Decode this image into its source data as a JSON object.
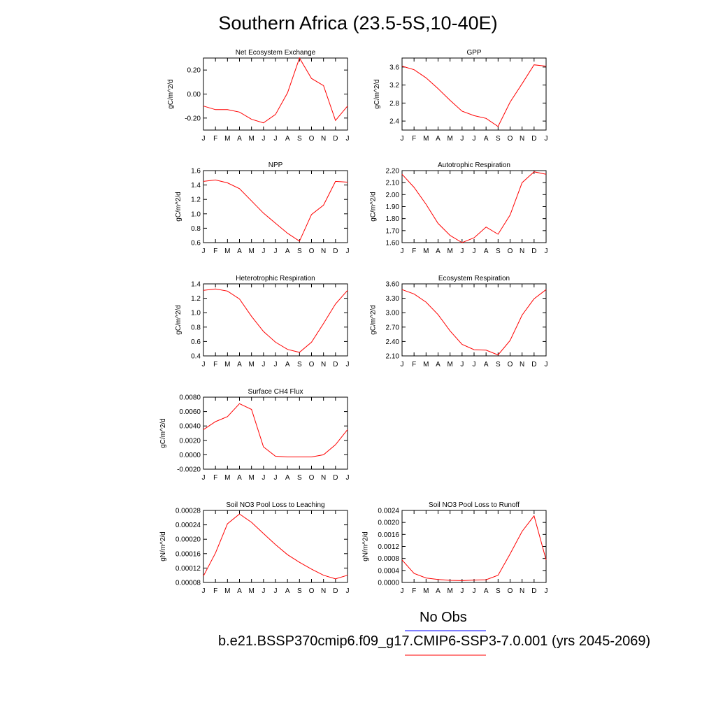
{
  "title": "Southern Africa (23.5-5S,10-40E)",
  "legend": {
    "obs_label": "No Obs",
    "obs_color": "#0000ff",
    "run_label": "b.e21.BSSP370cmip6.f09_g17.CMIP6-SSP3-7.0.001 (yrs 2045-2069)",
    "run_color": "#ff0000"
  },
  "chart_data": [
    {
      "type": "line",
      "title": "Net Ecosystem Exchange",
      "ylabel": "gC/m^2/d",
      "ylim": [
        -0.3,
        0.3
      ],
      "yticks": [
        -0.2,
        0.0,
        0.2
      ],
      "ytick_labels": [
        "-0.20",
        "0.00",
        "0.20"
      ],
      "x": [
        "J",
        "F",
        "M",
        "A",
        "M",
        "J",
        "J",
        "A",
        "S",
        "O",
        "N",
        "D",
        "J"
      ],
      "series": [
        {
          "values": [
            -0.1,
            -0.13,
            -0.13,
            -0.15,
            -0.21,
            -0.24,
            -0.17,
            0.01,
            0.3,
            0.13,
            0.07,
            -0.22,
            -0.1
          ],
          "color": "#ff0000"
        }
      ]
    },
    {
      "type": "line",
      "title": "GPP",
      "ylabel": "gC/m^2/d",
      "ylim": [
        2.2,
        3.8
      ],
      "yticks": [
        2.4,
        2.8,
        3.2,
        3.6
      ],
      "ytick_labels": [
        "2.4",
        "2.8",
        "3.2",
        "3.6"
      ],
      "x": [
        "J",
        "F",
        "M",
        "A",
        "M",
        "J",
        "J",
        "A",
        "S",
        "O",
        "N",
        "D",
        "J"
      ],
      "series": [
        {
          "values": [
            3.62,
            3.54,
            3.36,
            3.12,
            2.86,
            2.62,
            2.52,
            2.46,
            2.28,
            2.82,
            3.23,
            3.65,
            3.62
          ],
          "color": "#ff0000"
        }
      ]
    },
    {
      "type": "line",
      "title": "NPP",
      "ylabel": "gC/m^2/d",
      "ylim": [
        0.6,
        1.6
      ],
      "yticks": [
        0.6,
        0.8,
        1.0,
        1.2,
        1.4,
        1.6
      ],
      "ytick_labels": [
        "0.6",
        "0.8",
        "1.0",
        "1.2",
        "1.4",
        "1.6"
      ],
      "x": [
        "J",
        "F",
        "M",
        "A",
        "M",
        "J",
        "J",
        "A",
        "S",
        "O",
        "N",
        "D",
        "J"
      ],
      "series": [
        {
          "values": [
            1.45,
            1.47,
            1.43,
            1.35,
            1.18,
            1.01,
            0.87,
            0.73,
            0.62,
            0.99,
            1.12,
            1.45,
            1.44
          ],
          "color": "#ff0000"
        }
      ]
    },
    {
      "type": "line",
      "title": "Autotrophic Respiration",
      "ylabel": "gC/m^2/d",
      "ylim": [
        1.6,
        2.2
      ],
      "yticks": [
        1.6,
        1.7,
        1.8,
        1.9,
        2.0,
        2.1,
        2.2
      ],
      "ytick_labels": [
        "1.60",
        "1.70",
        "1.80",
        "1.90",
        "2.00",
        "2.10",
        "2.20"
      ],
      "x": [
        "J",
        "F",
        "M",
        "A",
        "M",
        "J",
        "J",
        "A",
        "S",
        "O",
        "N",
        "D",
        "J"
      ],
      "series": [
        {
          "values": [
            2.17,
            2.06,
            1.92,
            1.76,
            1.66,
            1.6,
            1.64,
            1.73,
            1.67,
            1.83,
            2.1,
            2.19,
            2.17
          ],
          "color": "#ff0000"
        }
      ]
    },
    {
      "type": "line",
      "title": "Heterotrophic Respiration",
      "ylabel": "gC/m^2/d",
      "ylim": [
        0.4,
        1.4
      ],
      "yticks": [
        0.4,
        0.6,
        0.8,
        1.0,
        1.2,
        1.4
      ],
      "ytick_labels": [
        "0.4",
        "0.6",
        "0.8",
        "1.0",
        "1.2",
        "1.4"
      ],
      "x": [
        "J",
        "F",
        "M",
        "A",
        "M",
        "J",
        "J",
        "A",
        "S",
        "O",
        "N",
        "D",
        "J"
      ],
      "series": [
        {
          "values": [
            1.31,
            1.33,
            1.3,
            1.19,
            0.95,
            0.74,
            0.59,
            0.49,
            0.45,
            0.59,
            0.85,
            1.12,
            1.31
          ],
          "color": "#ff0000"
        }
      ]
    },
    {
      "type": "line",
      "title": "Ecosystem Respiration",
      "ylabel": "gC/m^2/d",
      "ylim": [
        2.1,
        3.6
      ],
      "yticks": [
        2.1,
        2.4,
        2.7,
        3.0,
        3.3,
        3.6
      ],
      "ytick_labels": [
        "2.10",
        "2.40",
        "2.70",
        "3.00",
        "3.30",
        "3.60"
      ],
      "x": [
        "J",
        "F",
        "M",
        "A",
        "M",
        "J",
        "J",
        "A",
        "S",
        "O",
        "N",
        "D",
        "J"
      ],
      "series": [
        {
          "values": [
            3.48,
            3.39,
            3.22,
            2.96,
            2.62,
            2.34,
            2.23,
            2.22,
            2.12,
            2.42,
            2.95,
            3.29,
            3.48
          ],
          "color": "#ff0000"
        }
      ]
    },
    {
      "type": "line",
      "title": "Surface CH4 Flux",
      "ylabel": "gC/m^2/d",
      "ylim": [
        -0.002,
        0.008
      ],
      "yticks": [
        -0.002,
        0.0,
        0.002,
        0.004,
        0.006,
        0.008
      ],
      "ytick_labels": [
        "-0.0020",
        "0.0000",
        "0.0020",
        "0.0040",
        "0.0060",
        "0.0080"
      ],
      "x": [
        "J",
        "F",
        "M",
        "A",
        "M",
        "J",
        "J",
        "A",
        "S",
        "O",
        "N",
        "D",
        "J"
      ],
      "series": [
        {
          "values": [
            0.0035,
            0.0046,
            0.0053,
            0.0071,
            0.0063,
            0.0011,
            -0.0002,
            -0.0003,
            -0.0003,
            -0.0003,
            0.0,
            0.0014,
            0.0035
          ],
          "color": "#ff0000"
        }
      ]
    },
    null,
    {
      "type": "line",
      "title": "Soil NO3 Pool Loss to Leaching",
      "ylabel": "gN/m^2/d",
      "ylim": [
        8e-05,
        0.00028
      ],
      "yticks": [
        8e-05,
        0.00012,
        0.00016,
        0.0002,
        0.00024,
        0.00028
      ],
      "ytick_labels": [
        "0.00008",
        "0.00012",
        "0.00016",
        "0.00020",
        "0.00024",
        "0.00028"
      ],
      "x": [
        "J",
        "F",
        "M",
        "A",
        "M",
        "J",
        "J",
        "A",
        "S",
        "O",
        "N",
        "D",
        "J"
      ],
      "series": [
        {
          "values": [
            9.8e-05,
            0.000162,
            0.000243,
            0.00027,
            0.000247,
            0.000216,
            0.000185,
            0.000157,
            0.000136,
            0.000117,
            0.0001,
            9e-05,
            0.0001
          ],
          "color": "#ff0000"
        }
      ]
    },
    {
      "type": "line",
      "title": "Soil NO3 Pool Loss to Runoff",
      "ylabel": "gN/m^2/d",
      "ylim": [
        0.0,
        0.0024
      ],
      "yticks": [
        0.0,
        0.0004,
        0.0008,
        0.0012,
        0.0016,
        0.002,
        0.0024
      ],
      "ytick_labels": [
        "0.0000",
        "0.0004",
        "0.0008",
        "0.0012",
        "0.0016",
        "0.0020",
        "0.0024"
      ],
      "x": [
        "J",
        "F",
        "M",
        "A",
        "M",
        "J",
        "J",
        "A",
        "S",
        "O",
        "N",
        "D",
        "J"
      ],
      "series": [
        {
          "values": [
            0.00075,
            0.0003,
            0.00015,
            0.0001,
            7e-05,
            6e-05,
            8e-05,
            9e-05,
            0.00024,
            0.00095,
            0.0017,
            0.00222,
            0.00075
          ],
          "color": "#ff0000"
        }
      ]
    }
  ]
}
